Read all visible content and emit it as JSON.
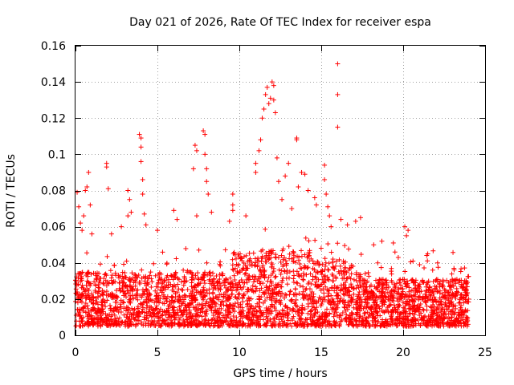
{
  "chart_data": {
    "type": "scatter",
    "title": "Day 021 of 2026, Rate Of TEC Index for receiver espa",
    "xlabel": "GPS time / hours",
    "ylabel": "ROTI / TECUs",
    "xlim": [
      0,
      25
    ],
    "ylim": [
      0,
      0.16
    ],
    "x_ticks": [
      0,
      5,
      10,
      15,
      20,
      25
    ],
    "y_ticks": [
      0,
      0.02,
      0.04,
      0.06,
      0.08,
      0.1,
      0.12,
      0.14,
      0.16
    ],
    "x_tick_labels": [
      "0",
      "5",
      "10",
      "15",
      "20",
      "25"
    ],
    "y_tick_labels": [
      "0",
      "0.02",
      "0.04",
      "0.06",
      "0.08",
      "0.1",
      "0.12",
      "0.14",
      "0.16"
    ],
    "grid": true,
    "marker": "+",
    "color": "#ff0000",
    "x_data_range_hours": [
      0,
      24
    ],
    "bulk_band": {
      "low": 0.005,
      "high": 0.035
    },
    "bulk_points": 3200,
    "bulk_seed": 21,
    "series": [
      {
        "name": "ROTI",
        "points": [
          [
            0.1,
            0.079
          ],
          [
            0.2,
            0.071
          ],
          [
            0.3,
            0.062
          ],
          [
            0.4,
            0.058
          ],
          [
            0.5,
            0.066
          ],
          [
            0.6,
            0.08
          ],
          [
            0.7,
            0.082
          ],
          [
            0.8,
            0.09
          ],
          [
            0.9,
            0.072
          ],
          [
            1.0,
            0.056
          ],
          [
            1.9,
            0.095
          ],
          [
            1.9,
            0.093
          ],
          [
            2.0,
            0.081
          ],
          [
            2.2,
            0.056
          ],
          [
            2.8,
            0.06
          ],
          [
            3.2,
            0.066
          ],
          [
            3.2,
            0.08
          ],
          [
            3.3,
            0.075
          ],
          [
            3.4,
            0.068
          ],
          [
            3.9,
            0.111
          ],
          [
            4.0,
            0.109
          ],
          [
            4.0,
            0.104
          ],
          [
            4.0,
            0.096
          ],
          [
            4.1,
            0.086
          ],
          [
            4.1,
            0.078
          ],
          [
            4.2,
            0.067
          ],
          [
            4.3,
            0.061
          ],
          [
            5.0,
            0.058
          ],
          [
            6.0,
            0.069
          ],
          [
            6.2,
            0.064
          ],
          [
            7.2,
            0.092
          ],
          [
            7.3,
            0.105
          ],
          [
            7.4,
            0.102
          ],
          [
            7.4,
            0.066
          ],
          [
            7.8,
            0.113
          ],
          [
            7.9,
            0.111
          ],
          [
            7.9,
            0.1
          ],
          [
            8.0,
            0.092
          ],
          [
            8.0,
            0.085
          ],
          [
            8.1,
            0.078
          ],
          [
            8.3,
            0.068
          ],
          [
            9.4,
            0.063
          ],
          [
            9.6,
            0.078
          ],
          [
            9.6,
            0.072
          ],
          [
            9.6,
            0.069
          ],
          [
            10.4,
            0.066
          ],
          [
            11.0,
            0.095
          ],
          [
            11.0,
            0.09
          ],
          [
            11.2,
            0.102
          ],
          [
            11.3,
            0.108
          ],
          [
            11.4,
            0.12
          ],
          [
            11.5,
            0.125
          ],
          [
            11.6,
            0.133
          ],
          [
            11.7,
            0.137
          ],
          [
            11.8,
            0.128
          ],
          [
            11.9,
            0.131
          ],
          [
            12.0,
            0.14
          ],
          [
            12.1,
            0.138
          ],
          [
            12.1,
            0.13
          ],
          [
            12.2,
            0.123
          ],
          [
            12.3,
            0.098
          ],
          [
            12.4,
            0.085
          ],
          [
            12.6,
            0.075
          ],
          [
            12.8,
            0.088
          ],
          [
            13.0,
            0.095
          ],
          [
            13.2,
            0.07
          ],
          [
            13.5,
            0.109
          ],
          [
            13.5,
            0.108
          ],
          [
            13.6,
            0.082
          ],
          [
            13.8,
            0.09
          ],
          [
            14.0,
            0.089
          ],
          [
            14.2,
            0.08
          ],
          [
            14.6,
            0.076
          ],
          [
            14.7,
            0.072
          ],
          [
            15.2,
            0.094
          ],
          [
            15.2,
            0.086
          ],
          [
            15.3,
            0.078
          ],
          [
            15.4,
            0.071
          ],
          [
            15.5,
            0.066
          ],
          [
            15.6,
            0.06
          ],
          [
            16.0,
            0.15
          ],
          [
            16.0,
            0.133
          ],
          [
            16.0,
            0.115
          ],
          [
            16.2,
            0.064
          ],
          [
            16.6,
            0.061
          ],
          [
            17.1,
            0.063
          ],
          [
            17.4,
            0.065
          ],
          [
            18.2,
            0.05
          ],
          [
            18.7,
            0.052
          ],
          [
            19.4,
            0.051
          ],
          [
            19.5,
            0.046
          ],
          [
            19.7,
            0.043
          ],
          [
            20.1,
            0.06
          ],
          [
            20.2,
            0.055
          ],
          [
            20.3,
            0.058
          ],
          [
            20.6,
            0.041
          ],
          [
            21.0,
            0.039
          ],
          [
            21.5,
            0.045
          ],
          [
            21.8,
            0.036
          ],
          [
            22.1,
            0.04
          ],
          [
            23.1,
            0.037
          ],
          [
            23.4,
            0.029
          ],
          [
            23.8,
            0.025
          ],
          [
            24.0,
            0.02
          ]
        ]
      }
    ]
  }
}
